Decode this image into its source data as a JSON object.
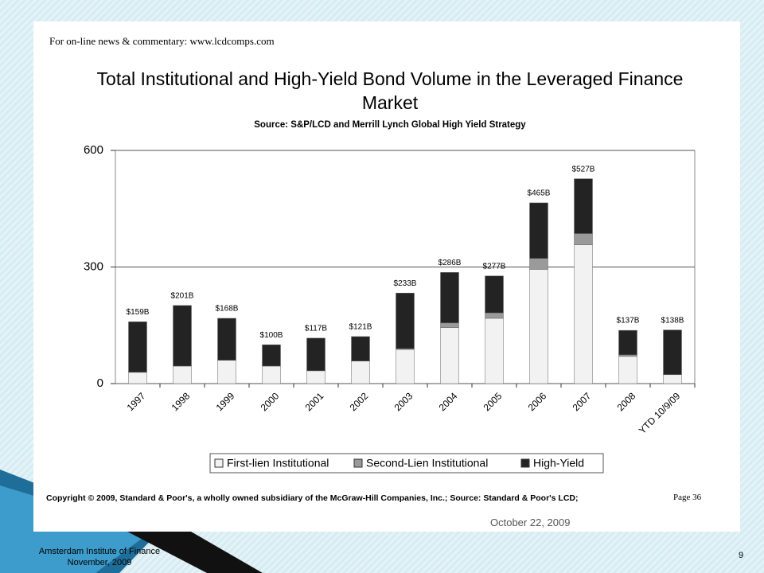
{
  "slide": {
    "header_note": "For on-line news & commentary: www.lcdcomps.com",
    "copyright": "Copyright © 2009, Standard & Poor's, a wholly owned subsidiary of the McGraw-Hill Companies, Inc.; Source:  Standard & Poor's LCD;",
    "page_ref": "Page 36",
    "date": "October 22, 2009",
    "footer_lines": [
      "Amsterdam Institute of Finance",
      "November, 2009"
    ],
    "slide_number": 9
  },
  "chart_data": {
    "type": "stacked_bar",
    "title": "Total Institutional and High-Yield Bond Volume in the Leveraged Finance Market",
    "subtitle": "Source: S&P/LCD and Merrill Lynch Global High Yield  Strategy",
    "categories": [
      "1997",
      "1998",
      "1999",
      "2000",
      "2001",
      "2002",
      "2003",
      "2004",
      "2005",
      "2006",
      "2007",
      "2008",
      "YTD 10/9/09"
    ],
    "series": [
      {
        "name": "First-lien Institutional",
        "color": "#f2f2f2",
        "values": [
          29,
          45,
          60,
          45,
          33,
          58,
          88,
          144,
          168,
          294,
          357,
          70,
          23
        ]
      },
      {
        "name": "Second-Lien Institutional",
        "color": "#9a9a9a",
        "values": [
          0,
          0,
          0,
          0,
          0,
          0,
          2,
          12,
          14,
          28,
          29,
          4,
          0
        ]
      },
      {
        "name": "High-Yield",
        "color": "#232323",
        "values": [
          130,
          156,
          108,
          55,
          84,
          63,
          143,
          130,
          95,
          143,
          141,
          63,
          115
        ]
      }
    ],
    "totals": {
      "values": [
        159,
        201,
        168,
        100,
        117,
        121,
        233,
        286,
        277,
        465,
        527,
        137,
        138
      ],
      "value_labels": [
        "$159B",
        "$201B",
        "$168B",
        "$100B",
        "$117B",
        "$121B",
        "$233B",
        "$286B",
        "$277B",
        "$465B",
        "$527B",
        "$137B",
        "$138B"
      ]
    },
    "ylim": [
      0,
      600
    ],
    "yticks": [
      0,
      300,
      600
    ],
    "grid": true,
    "legend": "bottom"
  }
}
